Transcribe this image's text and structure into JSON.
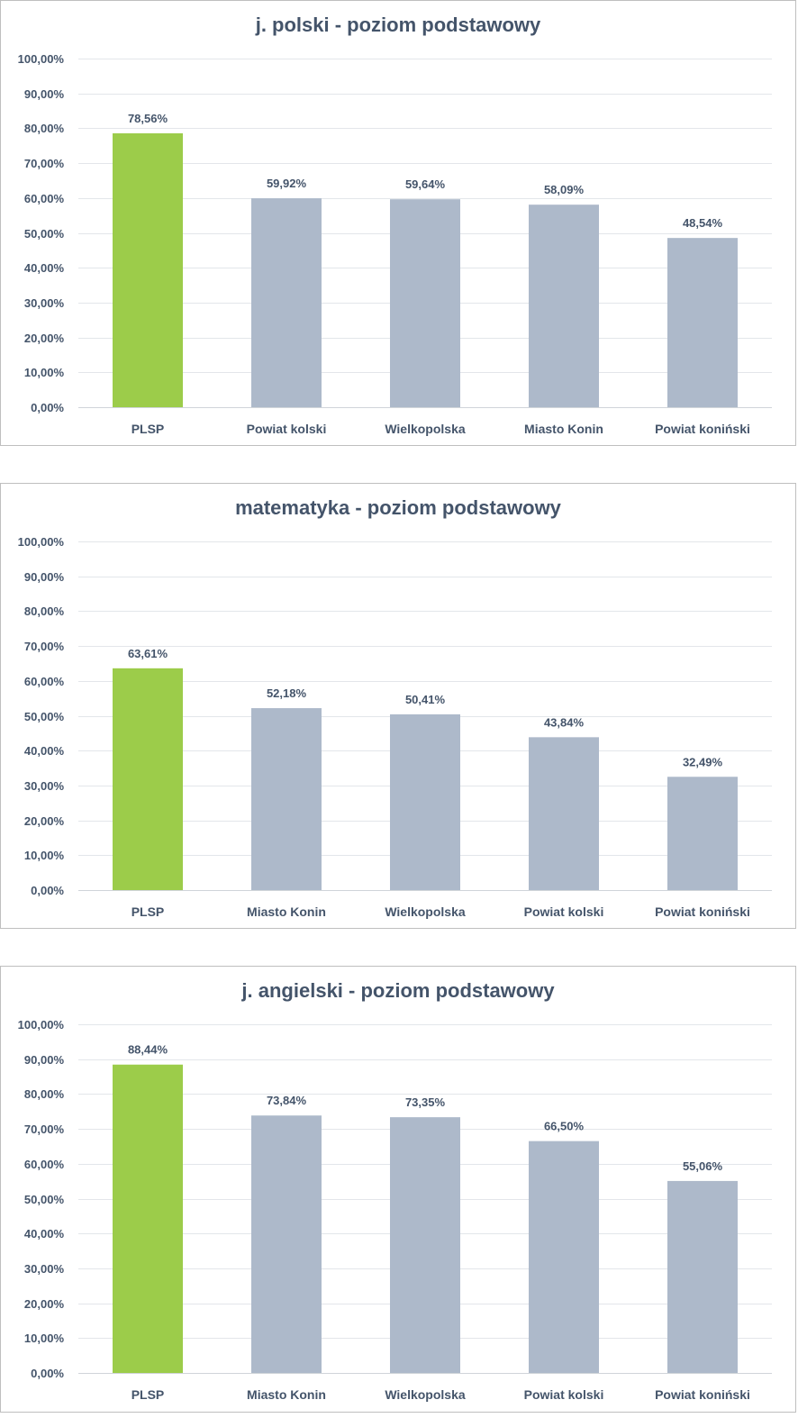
{
  "colors": {
    "highlight": "#9ccc4a",
    "bar": "#adb9ca",
    "grid": "#e3e6ea",
    "axis": "#d0d4d9",
    "text": "#44546a"
  },
  "chart_data": [
    {
      "type": "bar",
      "title": "j. polski - poziom podstawowy",
      "categories": [
        "PLSP",
        "Powiat kolski",
        "Wielkopolska",
        "Miasto Konin",
        "Powiat koniński"
      ],
      "values": [
        78.56,
        59.92,
        59.64,
        58.09,
        48.54
      ],
      "value_labels": [
        "78,56%",
        "59,92%",
        "59,64%",
        "58,09%",
        "48,54%"
      ],
      "highlight_index": 0,
      "ylim": [
        0,
        100
      ],
      "ytick_values": [
        0,
        10,
        20,
        30,
        40,
        50,
        60,
        70,
        80,
        90,
        100
      ],
      "ytick_labels": [
        "0,00%",
        "10,00%",
        "20,00%",
        "30,00%",
        "40,00%",
        "50,00%",
        "60,00%",
        "70,00%",
        "80,00%",
        "90,00%",
        "100,00%"
      ],
      "xlabel": "",
      "ylabel": "",
      "grid": true
    },
    {
      "type": "bar",
      "title": "matematyka - poziom podstawowy",
      "categories": [
        "PLSP",
        "Miasto Konin",
        "Wielkopolska",
        "Powiat kolski",
        "Powiat koniński"
      ],
      "values": [
        63.61,
        52.18,
        50.41,
        43.84,
        32.49
      ],
      "value_labels": [
        "63,61%",
        "52,18%",
        "50,41%",
        "43,84%",
        "32,49%"
      ],
      "highlight_index": 0,
      "ylim": [
        0,
        100
      ],
      "ytick_values": [
        0,
        10,
        20,
        30,
        40,
        50,
        60,
        70,
        80,
        90,
        100
      ],
      "ytick_labels": [
        "0,00%",
        "10,00%",
        "20,00%",
        "30,00%",
        "40,00%",
        "50,00%",
        "60,00%",
        "70,00%",
        "80,00%",
        "90,00%",
        "100,00%"
      ],
      "xlabel": "",
      "ylabel": "",
      "grid": true
    },
    {
      "type": "bar",
      "title": "j. angielski - poziom podstawowy",
      "categories": [
        "PLSP",
        "Miasto Konin",
        "Wielkopolska",
        "Powiat kolski",
        "Powiat koniński"
      ],
      "values": [
        88.44,
        73.84,
        73.35,
        66.5,
        55.06
      ],
      "value_labels": [
        "88,44%",
        "73,84%",
        "73,35%",
        "66,50%",
        "55,06%"
      ],
      "highlight_index": 0,
      "ylim": [
        0,
        100
      ],
      "ytick_values": [
        0,
        10,
        20,
        30,
        40,
        50,
        60,
        70,
        80,
        90,
        100
      ],
      "ytick_labels": [
        "0,00%",
        "10,00%",
        "20,00%",
        "30,00%",
        "40,00%",
        "50,00%",
        "60,00%",
        "70,00%",
        "80,00%",
        "90,00%",
        "100,00%"
      ],
      "xlabel": "",
      "ylabel": "",
      "grid": true
    }
  ]
}
